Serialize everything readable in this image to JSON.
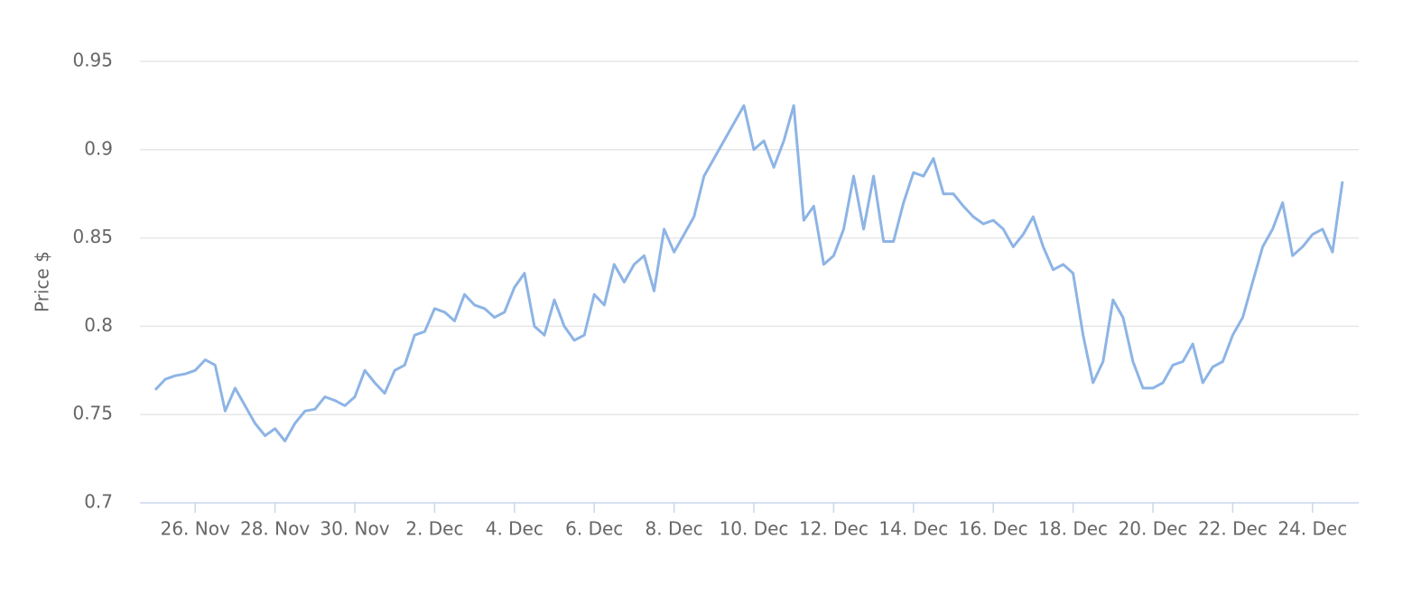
{
  "chart_data": {
    "type": "line",
    "y_label": "Price $",
    "categories": [
      null,
      null,
      null,
      null,
      "26. Nov",
      null,
      null,
      null,
      null,
      null,
      null,
      null,
      "28. Nov",
      null,
      null,
      null,
      null,
      null,
      null,
      null,
      "30. Nov",
      null,
      null,
      null,
      null,
      null,
      null,
      null,
      "2. Dec",
      null,
      null,
      null,
      null,
      null,
      null,
      null,
      "4. Dec",
      null,
      null,
      null,
      null,
      null,
      null,
      null,
      "6. Dec",
      null,
      null,
      null,
      null,
      null,
      null,
      null,
      "8. Dec",
      null,
      null,
      null,
      null,
      null,
      null,
      null,
      "10. Dec",
      null,
      null,
      null,
      null,
      null,
      null,
      null,
      "12. Dec",
      null,
      null,
      null,
      null,
      null,
      null,
      null,
      "14. Dec",
      null,
      null,
      null,
      null,
      null,
      null,
      null,
      "16. Dec",
      null,
      null,
      null,
      null,
      null,
      null,
      null,
      "18. Dec",
      null,
      null,
      null,
      null,
      null,
      null,
      null,
      "20. Dec",
      null,
      null,
      null,
      null,
      null,
      null,
      null,
      "22. Dec",
      null,
      null,
      null,
      null,
      null,
      null,
      null,
      "24. Dec",
      null,
      null,
      null
    ],
    "series": [
      {
        "color": "#8db4e5",
        "values": [
          0.764,
          0.77,
          0.772,
          0.773,
          0.775,
          0.781,
          0.778,
          0.752,
          0.765,
          0.755,
          0.745,
          0.738,
          0.742,
          0.735,
          0.745,
          0.752,
          0.753,
          0.76,
          0.758,
          0.755,
          0.76,
          0.775,
          0.768,
          0.762,
          0.775,
          0.778,
          0.795,
          0.797,
          0.81,
          0.808,
          0.803,
          0.818,
          0.812,
          0.81,
          0.805,
          0.808,
          0.822,
          0.83,
          0.8,
          0.795,
          0.815,
          0.8,
          0.792,
          0.795,
          0.818,
          0.812,
          0.835,
          0.825,
          0.835,
          0.84,
          0.82,
          0.855,
          0.842,
          0.852,
          0.862,
          0.885,
          0.895,
          0.905,
          0.915,
          0.925,
          0.9,
          0.905,
          0.89,
          0.905,
          0.925,
          0.86,
          0.868,
          0.835,
          0.84,
          0.855,
          0.885,
          0.855,
          0.885,
          0.848,
          0.848,
          0.87,
          0.887,
          0.885,
          0.895,
          0.875,
          0.875,
          0.868,
          0.862,
          0.858,
          0.86,
          0.855,
          0.845,
          0.852,
          0.862,
          0.845,
          0.832,
          0.835,
          0.83,
          0.795,
          0.768,
          0.78,
          0.815,
          0.805,
          0.78,
          0.765,
          0.765,
          0.768,
          0.778,
          0.78,
          0.79,
          0.768,
          0.777,
          0.78,
          0.795,
          0.805,
          0.825,
          0.845,
          0.855,
          0.87,
          0.84,
          0.845,
          0.852,
          0.855,
          0.842,
          0.882
        ]
      }
    ],
    "ylim": [
      0.7,
      0.95
    ],
    "yticks": [
      0.7,
      0.75,
      0.8,
      0.85,
      0.9,
      0.95
    ],
    "grid": true
  }
}
